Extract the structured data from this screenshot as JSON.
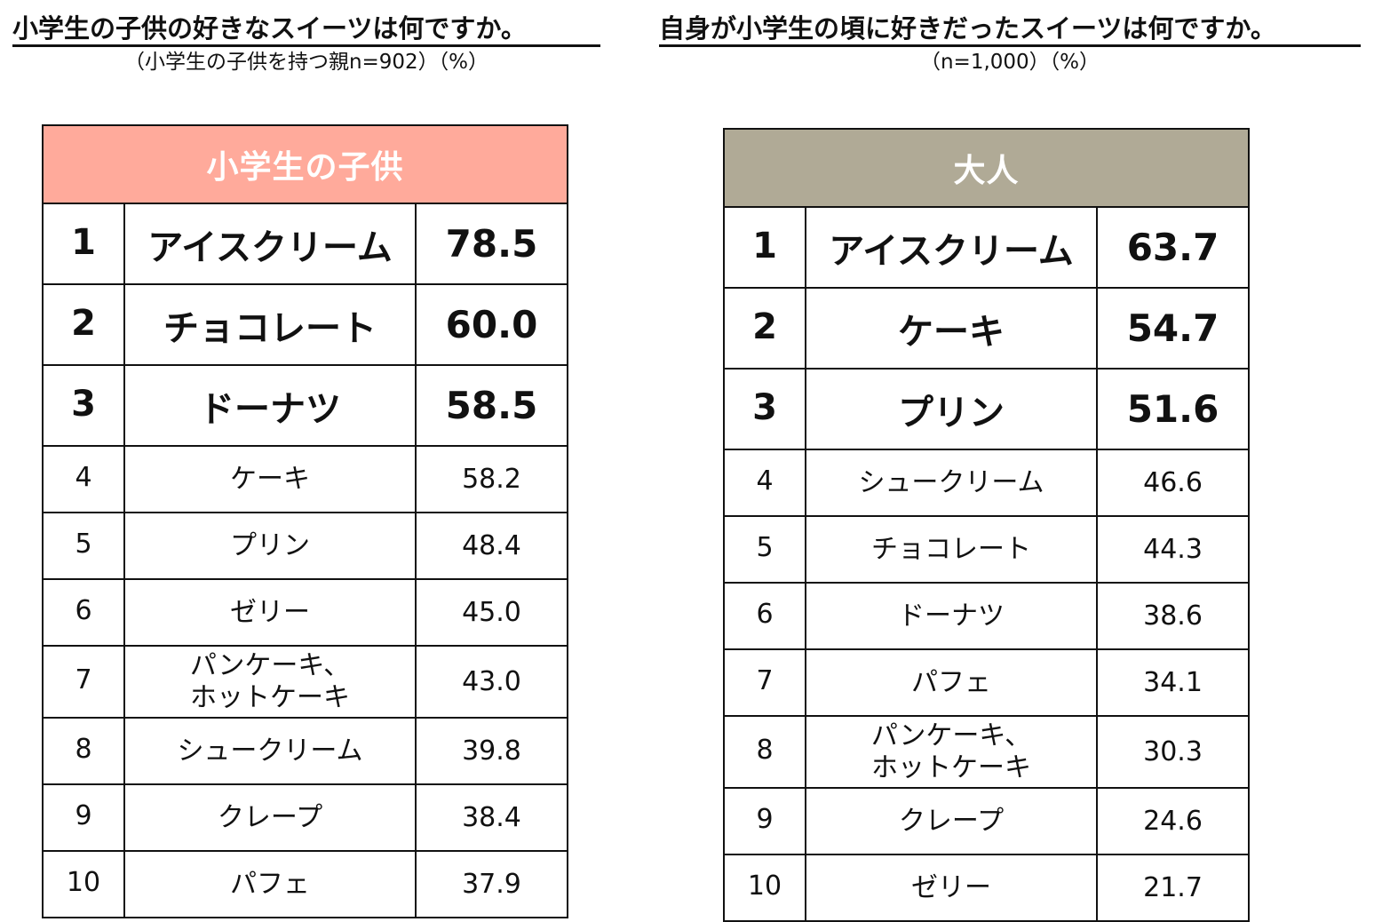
{
  "left": {
    "title": "小学生の子供の好きなスイーツは何ですか。",
    "subtitle": "（小学生の子供を持つ親n=902）（%）",
    "header": "小学生の子供",
    "rows": [
      {
        "rank": "1",
        "name": "アイスクリーム",
        "value": "78.5"
      },
      {
        "rank": "2",
        "name": "チョコレート",
        "value": "60.0"
      },
      {
        "rank": "3",
        "name": "ドーナツ",
        "value": "58.5"
      },
      {
        "rank": "4",
        "name": "ケーキ",
        "value": "58.2"
      },
      {
        "rank": "5",
        "name": "プリン",
        "value": "48.4"
      },
      {
        "rank": "6",
        "name": "ゼリー",
        "value": "45.0"
      },
      {
        "rank": "7",
        "name_line1": "パンケーキ、",
        "name_line2": "ホットケーキ",
        "value": "43.0"
      },
      {
        "rank": "8",
        "name": "シュークリーム",
        "value": "39.8"
      },
      {
        "rank": "9",
        "name": "クレープ",
        "value": "38.4"
      },
      {
        "rank": "10",
        "name": "パフェ",
        "value": "37.9"
      }
    ]
  },
  "right": {
    "title": "自身が小学生の頃に好きだったスイーツは何ですか。",
    "subtitle": "（n=1,000）（%）",
    "header": "大人",
    "rows": [
      {
        "rank": "1",
        "name": "アイスクリーム",
        "value": "63.7"
      },
      {
        "rank": "2",
        "name": "ケーキ",
        "value": "54.7"
      },
      {
        "rank": "3",
        "name": "プリン",
        "value": "51.6"
      },
      {
        "rank": "4",
        "name": "シュークリーム",
        "value": "46.6"
      },
      {
        "rank": "5",
        "name": "チョコレート",
        "value": "44.3"
      },
      {
        "rank": "6",
        "name": "ドーナツ",
        "value": "38.6"
      },
      {
        "rank": "7",
        "name": "パフェ",
        "value": "34.1"
      },
      {
        "rank": "8",
        "name_line1": "パンケーキ、",
        "name_line2": "ホットケーキ",
        "value": "30.3"
      },
      {
        "rank": "9",
        "name": "クレープ",
        "value": "24.6"
      },
      {
        "rank": "10",
        "name": "ゼリー",
        "value": "21.7"
      }
    ]
  },
  "colors": {
    "left_header_bg": "#ffaa9b",
    "right_header_bg": "#b0aa96",
    "header_text": "#ffffff",
    "border": "#111111"
  }
}
